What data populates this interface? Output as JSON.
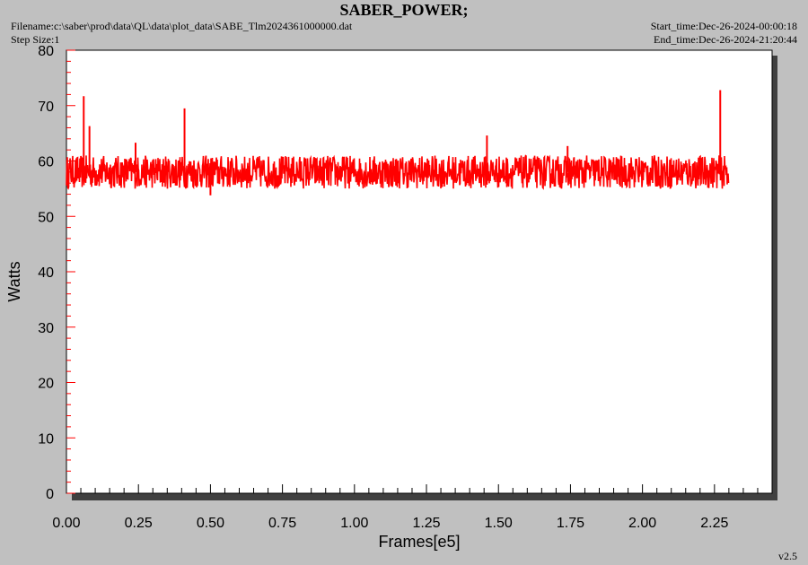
{
  "header": {
    "title": "SABER_POWER;",
    "filename": "Filename:c:\\saber\\prod\\data\\QL\\data\\plot_data\\SABE_Tlm2024361000000.dat",
    "step_size": "Step Size:1",
    "start_time": "Start_time:Dec-26-2024-00:00:18",
    "end_time": "End_time:Dec-26-2024-21:20:44"
  },
  "footer": {
    "version": "v2.5"
  },
  "chart_data": {
    "type": "line",
    "title": "SABER_POWER;",
    "xlabel": "Frames[e5]",
    "ylabel": "Watts",
    "xlim": [
      0.0,
      2.45
    ],
    "ylim": [
      0,
      80
    ],
    "x_ticks": [
      "0.00",
      "0.25",
      "0.50",
      "0.75",
      "1.00",
      "1.25",
      "1.50",
      "1.75",
      "2.00",
      "2.25"
    ],
    "y_ticks": [
      "0",
      "10",
      "20",
      "30",
      "40",
      "50",
      "60",
      "70",
      "80"
    ],
    "grid": false,
    "line_color": "#ff0000",
    "series": [
      {
        "x_range": [
          0.0,
          2.3
        ],
        "band_upper": 61,
        "band_lower": 55,
        "mean": 58,
        "spikes": [
          {
            "x": 0.06,
            "y": 71.7
          },
          {
            "x": 0.08,
            "y": 66.3
          },
          {
            "x": 0.24,
            "y": 63.3
          },
          {
            "x": 0.41,
            "y": 69.5
          },
          {
            "x": 0.5,
            "y": 53.8
          },
          {
            "x": 1.46,
            "y": 64.6
          },
          {
            "x": 1.74,
            "y": 62.7
          },
          {
            "x": 2.27,
            "y": 72.8
          }
        ]
      }
    ]
  }
}
